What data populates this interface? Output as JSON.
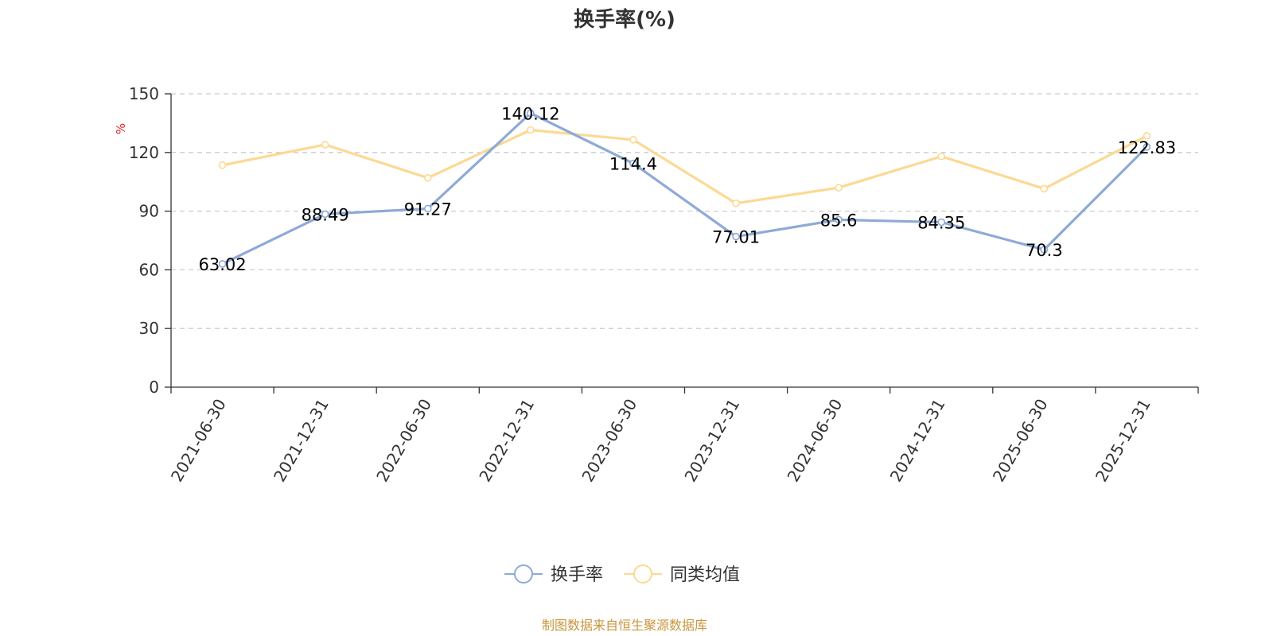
{
  "chart_data": {
    "type": "line",
    "title": "换手率(%)",
    "ylabel": "%",
    "xlabel": "",
    "categories": [
      "2021-06-30",
      "2021-12-31",
      "2022-06-30",
      "2022-12-31",
      "2023-06-30",
      "2023-12-31",
      "2024-06-30",
      "2024-12-31",
      "2025-06-30",
      "2025-12-31"
    ],
    "ylim": [
      0,
      150
    ],
    "yticks": [
      0,
      30,
      60,
      90,
      120,
      150
    ],
    "grid": true,
    "legend_position": "bottom-center",
    "series": [
      {
        "name": "换手率",
        "color": "#8eaad6",
        "show_labels": true,
        "labels": [
          "63.02",
          "88.49",
          "91.27",
          "140.12",
          "114.4",
          "77.01",
          "85.6",
          "84.35",
          "70.3",
          "122.83"
        ],
        "values": [
          63.02,
          88.49,
          91.27,
          140.12,
          114.4,
          77.01,
          85.6,
          84.35,
          70.3,
          122.83
        ]
      },
      {
        "name": "同类均值",
        "color": "#fcd993",
        "show_labels": false,
        "values": [
          113.5,
          124.0,
          107.0,
          131.5,
          126.5,
          94.0,
          102.0,
          118.0,
          101.5,
          128.5
        ]
      }
    ]
  },
  "source": {
    "text": "制图数据来自恒生聚源数据库",
    "color": "#c8963e"
  },
  "unit_color": "#e02020",
  "axis_color": "#333333",
  "grid_color": "#cccccc"
}
